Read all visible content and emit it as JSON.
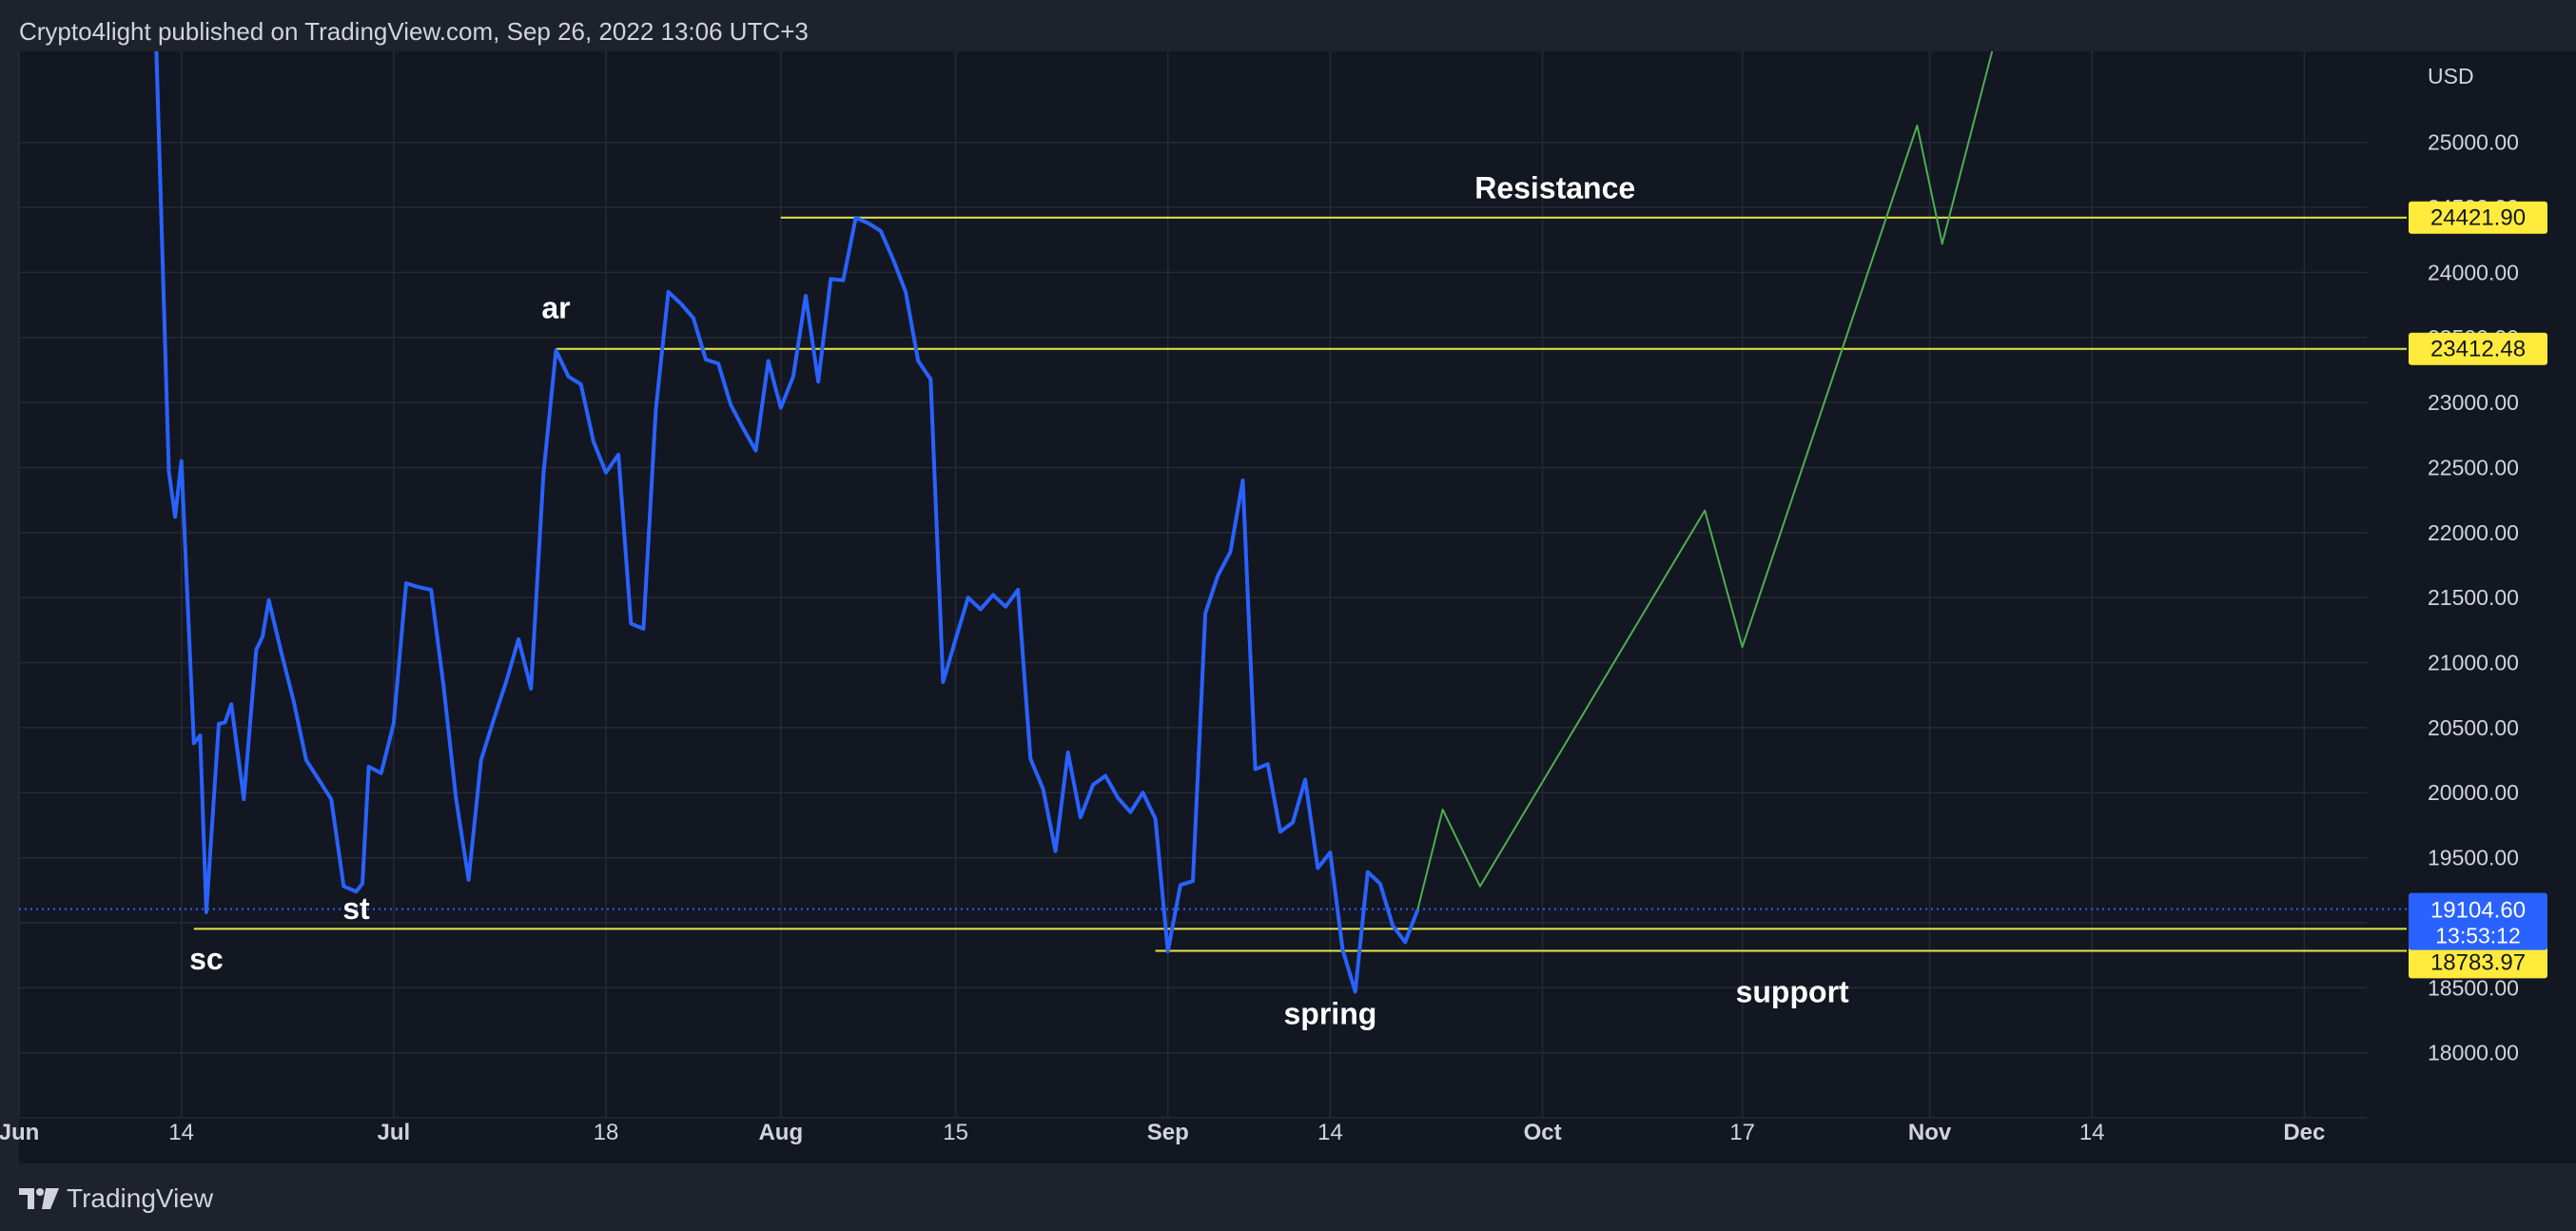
{
  "header": {
    "publisher_line": "Crypto4light published on TradingView.com, Sep 26, 2022 13:06 UTC+3"
  },
  "footer": {
    "brand": "TradingView",
    "logo_icon": "tradingview-logo-icon"
  },
  "colors": {
    "background": "#131722",
    "frame": "#1e222d",
    "grid": "#252a35",
    "price_line": "#2962ff",
    "projection_line": "#4caf50",
    "level_line": "#e6e64a",
    "level_badge": "#ffeb3b",
    "current_price_badge": "#2962ff",
    "text": "#d1d4dc",
    "annotation_text": "#ffffff"
  },
  "chart_data": {
    "type": "line",
    "symbol_currency": "USD",
    "x_ticks": [
      "Jun",
      "14",
      "Jul",
      "18",
      "Aug",
      "15",
      "Sep",
      "14",
      "Oct",
      "17",
      "Nov",
      "14",
      "Dec"
    ],
    "y_ticks": [
      "18000.00",
      "18500.00",
      "19000.00",
      "19500.00",
      "20000.00",
      "20500.00",
      "21000.00",
      "21500.00",
      "22000.00",
      "22500.00",
      "23000.00",
      "23500.00",
      "24000.00",
      "24500.00",
      "25000.00"
    ],
    "ylim": [
      17500,
      25700
    ],
    "xlim": [
      "2022-06-01",
      "2022-12-06"
    ],
    "grid": true,
    "series": [
      {
        "points": [
          [
            "2022-06-12",
            25700
          ],
          [
            "2022-06-13",
            22470
          ],
          [
            "2022-06-13 12:00",
            22120
          ],
          [
            "2022-06-14",
            22550
          ],
          [
            "2022-06-15",
            20380
          ],
          [
            "2022-06-15 12:00",
            20440
          ],
          [
            "2022-06-16",
            19080
          ],
          [
            "2022-06-17",
            20530
          ],
          [
            "2022-06-17 12:00",
            20540
          ],
          [
            "2022-06-18",
            20680
          ],
          [
            "2022-06-19",
            19950
          ],
          [
            "2022-06-20",
            21100
          ],
          [
            "2022-06-20 12:00",
            21200
          ],
          [
            "2022-06-21",
            21480
          ],
          [
            "2022-06-22",
            21080
          ],
          [
            "2022-06-23",
            20700
          ],
          [
            "2022-06-24",
            20250
          ],
          [
            "2022-06-25",
            20100
          ],
          [
            "2022-06-26",
            19950
          ],
          [
            "2022-06-27",
            19280
          ],
          [
            "2022-06-28",
            19240
          ],
          [
            "2022-06-28 12:00",
            19300
          ],
          [
            "2022-06-29",
            20200
          ],
          [
            "2022-06-30",
            20150
          ],
          [
            "2022-07-01",
            20530
          ],
          [
            "2022-07-02",
            21610
          ],
          [
            "2022-07-03",
            21580
          ],
          [
            "2022-07-04",
            21560
          ],
          [
            "2022-07-05",
            20820
          ],
          [
            "2022-07-06",
            19950
          ],
          [
            "2022-07-07",
            19330
          ],
          [
            "2022-07-08",
            20250
          ],
          [
            "2022-07-09",
            20560
          ],
          [
            "2022-07-10",
            20850
          ],
          [
            "2022-07-11",
            21180
          ],
          [
            "2022-07-12",
            20800
          ],
          [
            "2022-07-13",
            22460
          ],
          [
            "2022-07-14",
            23400
          ],
          [
            "2022-07-15",
            23200
          ],
          [
            "2022-07-16",
            23140
          ],
          [
            "2022-07-17",
            22700
          ],
          [
            "2022-07-18",
            22460
          ],
          [
            "2022-07-19",
            22600
          ],
          [
            "2022-07-20",
            21300
          ],
          [
            "2022-07-21",
            21260
          ],
          [
            "2022-07-22",
            22950
          ],
          [
            "2022-07-23",
            23850
          ],
          [
            "2022-07-24",
            23760
          ],
          [
            "2022-07-25",
            23650
          ],
          [
            "2022-07-26",
            23330
          ],
          [
            "2022-07-27",
            23300
          ],
          [
            "2022-07-28",
            22980
          ],
          [
            "2022-07-29",
            22800
          ],
          [
            "2022-07-30",
            22630
          ],
          [
            "2022-07-31",
            23320
          ],
          [
            "2022-08-01",
            22960
          ],
          [
            "2022-08-02",
            23200
          ],
          [
            "2022-08-03",
            23820
          ],
          [
            "2022-08-04",
            23160
          ],
          [
            "2022-08-05",
            23950
          ],
          [
            "2022-08-06",
            23940
          ],
          [
            "2022-08-07",
            24420
          ],
          [
            "2022-08-08",
            24380
          ],
          [
            "2022-08-09",
            24320
          ],
          [
            "2022-08-10",
            24100
          ],
          [
            "2022-08-11",
            23850
          ],
          [
            "2022-08-12",
            23320
          ],
          [
            "2022-08-13",
            23180
          ],
          [
            "2022-08-14",
            20850
          ],
          [
            "2022-08-15",
            21180
          ],
          [
            "2022-08-16",
            21500
          ],
          [
            "2022-08-17",
            21410
          ],
          [
            "2022-08-18",
            21520
          ],
          [
            "2022-08-19",
            21430
          ],
          [
            "2022-08-20",
            21560
          ],
          [
            "2022-08-21",
            20260
          ],
          [
            "2022-08-22",
            20030
          ],
          [
            "2022-08-23",
            19550
          ],
          [
            "2022-08-24",
            20310
          ],
          [
            "2022-08-25",
            19810
          ],
          [
            "2022-08-26",
            20060
          ],
          [
            "2022-08-27",
            20130
          ],
          [
            "2022-08-28",
            19960
          ],
          [
            "2022-08-29",
            19850
          ],
          [
            "2022-08-30",
            20000
          ],
          [
            "2022-08-31",
            19800
          ],
          [
            "2022-09-01",
            18780
          ],
          [
            "2022-09-02",
            19290
          ],
          [
            "2022-09-03",
            19320
          ],
          [
            "2022-09-04",
            21380
          ],
          [
            "2022-09-05",
            21670
          ],
          [
            "2022-09-06",
            21850
          ],
          [
            "2022-09-07",
            22400
          ],
          [
            "2022-09-08",
            20180
          ],
          [
            "2022-09-09",
            20220
          ],
          [
            "2022-09-10",
            19700
          ],
          [
            "2022-09-11",
            19770
          ],
          [
            "2022-09-12",
            20100
          ],
          [
            "2022-09-13",
            19420
          ],
          [
            "2022-09-14",
            19540
          ],
          [
            "2022-09-15",
            18790
          ],
          [
            "2022-09-16",
            18470
          ],
          [
            "2022-09-17",
            19390
          ],
          [
            "2022-09-18",
            19300
          ],
          [
            "2022-09-19",
            18980
          ],
          [
            "2022-09-20",
            18850
          ],
          [
            "2022-09-21",
            19100
          ]
        ]
      },
      {
        "points": [
          [
            "2022-09-21",
            19100
          ],
          [
            "2022-09-23",
            19870
          ],
          [
            "2022-09-26",
            19280
          ],
          [
            "2022-10-14",
            22170
          ],
          [
            "2022-10-17",
            21120
          ],
          [
            "2022-10-31",
            25130
          ],
          [
            "2022-11-02",
            24220
          ],
          [
            "2022-11-06",
            25700
          ]
        ]
      }
    ],
    "levels": [
      {
        "value": 24421.9,
        "label": "24421.90",
        "from": "2022-08-01"
      },
      {
        "value": 23412.48,
        "label": "23412.48",
        "from": "2022-07-14"
      },
      {
        "value": 18952.84,
        "label": "18952.84",
        "from": "2022-06-15"
      },
      {
        "value": 18783.97,
        "label": "18783.97",
        "from": "2022-08-31"
      }
    ],
    "current_price": {
      "value": 19104.6,
      "label": "19104.60",
      "countdown": "13:53:12"
    },
    "annotations": [
      {
        "text": "Resistance",
        "x": "2022-10-02",
        "y": 24570,
        "size": 32
      },
      {
        "text": "ar",
        "x": "2022-07-14",
        "y": 23650,
        "size": 32
      },
      {
        "text": "st",
        "x": "2022-06-28",
        "y": 19030,
        "size": 32
      },
      {
        "text": "sc",
        "x": "2022-06-16",
        "y": 18640,
        "size": 32
      },
      {
        "text": "spring",
        "x": "2022-09-14",
        "y": 18220,
        "size": 32
      },
      {
        "text": "support",
        "x": "2022-10-21",
        "y": 18390,
        "size": 32
      }
    ]
  }
}
